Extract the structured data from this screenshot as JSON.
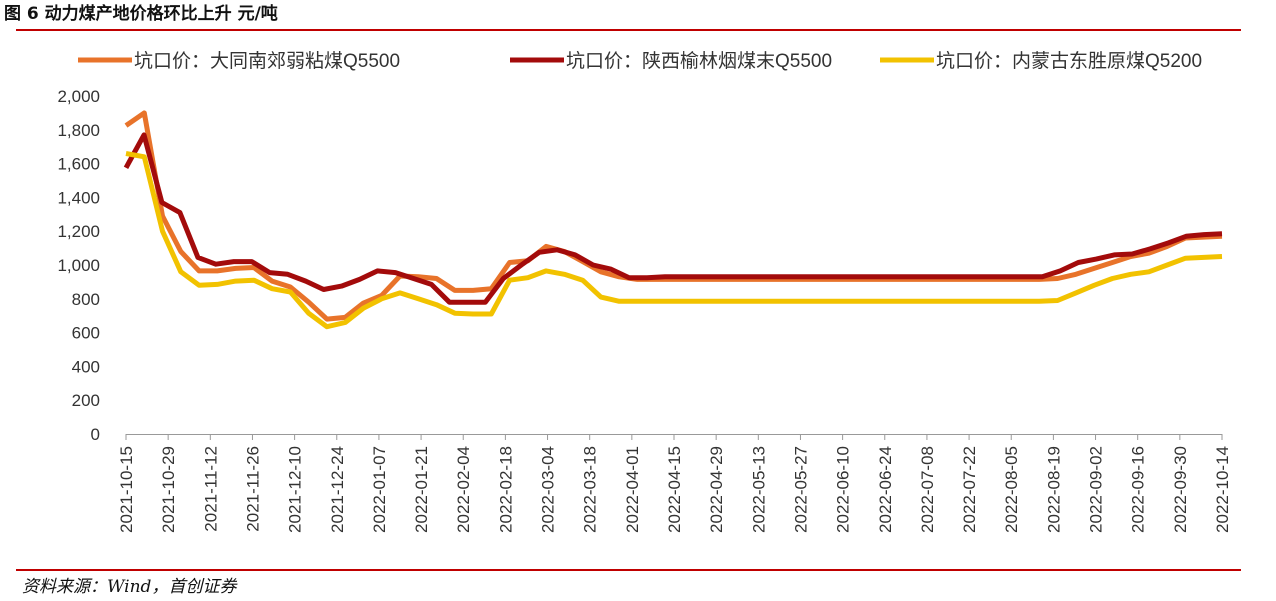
{
  "header": {
    "figure_title": "图 6  动力煤产地价格环比上升  元/吨"
  },
  "footer": {
    "source": "资料来源：Wind，首创证券"
  },
  "chart_data": {
    "type": "line",
    "title": "动力煤产地价格环比上升",
    "unit": "元/吨",
    "ylim": [
      0,
      2000
    ],
    "y_ticks": [
      "0",
      "200",
      "400",
      "600",
      "800",
      "1,000",
      "1,200",
      "1,400",
      "1,600",
      "1,800",
      "2,000"
    ],
    "x_ticks": [
      "2021-10-15",
      "2021-10-29",
      "2021-11-12",
      "2021-11-26",
      "2021-12-10",
      "2021-12-24",
      "2022-01-07",
      "2022-01-21",
      "2022-02-04",
      "2022-02-18",
      "2022-03-04",
      "2022-03-18",
      "2022-04-01",
      "2022-04-15",
      "2022-04-29",
      "2022-05-13",
      "2022-05-27",
      "2022-06-10",
      "2022-06-24",
      "2022-07-08",
      "2022-07-22",
      "2022-08-05",
      "2022-08-19",
      "2022-09-02",
      "2022-09-16",
      "2022-09-30",
      "2022-10-14"
    ],
    "legend_position": "top",
    "grid": false,
    "series": [
      {
        "name": "坑口价：大同南郊弱粘煤Q5500",
        "color": "#e8732a",
        "values": [
          1825,
          1900,
          1290,
          1080,
          965,
          965,
          980,
          985,
          905,
          870,
          780,
          680,
          690,
          775,
          820,
          935,
          930,
          920,
          850,
          850,
          860,
          1015,
          1025,
          1110,
          1080,
          1020,
          960,
          930,
          915,
          915,
          915,
          915,
          915,
          915,
          915,
          915,
          915,
          915,
          915,
          915,
          915,
          915,
          915,
          915,
          915,
          915,
          915,
          915,
          915,
          915,
          915,
          920,
          945,
          980,
          1015,
          1050,
          1070,
          1110,
          1160,
          1165,
          1170
        ]
      },
      {
        "name": "坑口价：陕西榆林烟煤末Q5500",
        "color": "#a30b0b",
        "values": [
          1575,
          1770,
          1370,
          1310,
          1045,
          1005,
          1020,
          1020,
          955,
          945,
          905,
          855,
          875,
          915,
          965,
          955,
          920,
          885,
          780,
          780,
          780,
          920,
          1000,
          1075,
          1090,
          1060,
          1000,
          975,
          925,
          925,
          930,
          930,
          930,
          930,
          930,
          930,
          930,
          930,
          930,
          930,
          930,
          930,
          930,
          930,
          930,
          930,
          930,
          930,
          930,
          930,
          930,
          930,
          965,
          1015,
          1035,
          1060,
          1065,
          1095,
          1130,
          1170,
          1180,
          1185
        ]
      },
      {
        "name": "坑口价：内蒙古东胜原煤Q5200",
        "color": "#f2c200",
        "values": [
          1660,
          1640,
          1200,
          960,
          880,
          885,
          905,
          910,
          860,
          840,
          715,
          635,
          660,
          745,
          800,
          835,
          800,
          765,
          715,
          710,
          710,
          910,
          925,
          965,
          945,
          910,
          810,
          785,
          785,
          785,
          785,
          785,
          785,
          785,
          785,
          785,
          785,
          785,
          785,
          785,
          785,
          785,
          785,
          785,
          785,
          785,
          785,
          785,
          785,
          785,
          785,
          790,
          835,
          880,
          920,
          945,
          960,
          1000,
          1040,
          1045,
          1050
        ]
      }
    ]
  }
}
